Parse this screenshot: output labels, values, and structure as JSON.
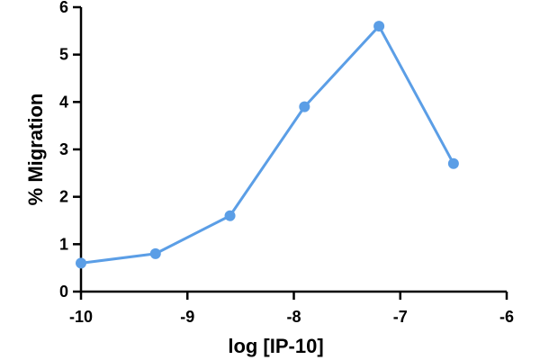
{
  "chart_data": {
    "type": "line",
    "title": "",
    "xlabel": "log [IP-10]",
    "ylabel": "% Migration",
    "xlim": [
      -10,
      -6
    ],
    "ylim": [
      0,
      6
    ],
    "xticks": [
      -10,
      -9,
      -8,
      -7,
      -6
    ],
    "yticks": [
      0,
      1,
      2,
      3,
      4,
      5,
      6
    ],
    "grid": false,
    "legend": "none",
    "series": [
      {
        "color": "#5b9ee6",
        "x": [
          -10,
          -9.3,
          -8.6,
          -7.9,
          -7.2,
          -6.5
        ],
        "y": [
          0.6,
          0.8,
          1.6,
          3.9,
          5.6,
          2.7
        ]
      }
    ]
  }
}
